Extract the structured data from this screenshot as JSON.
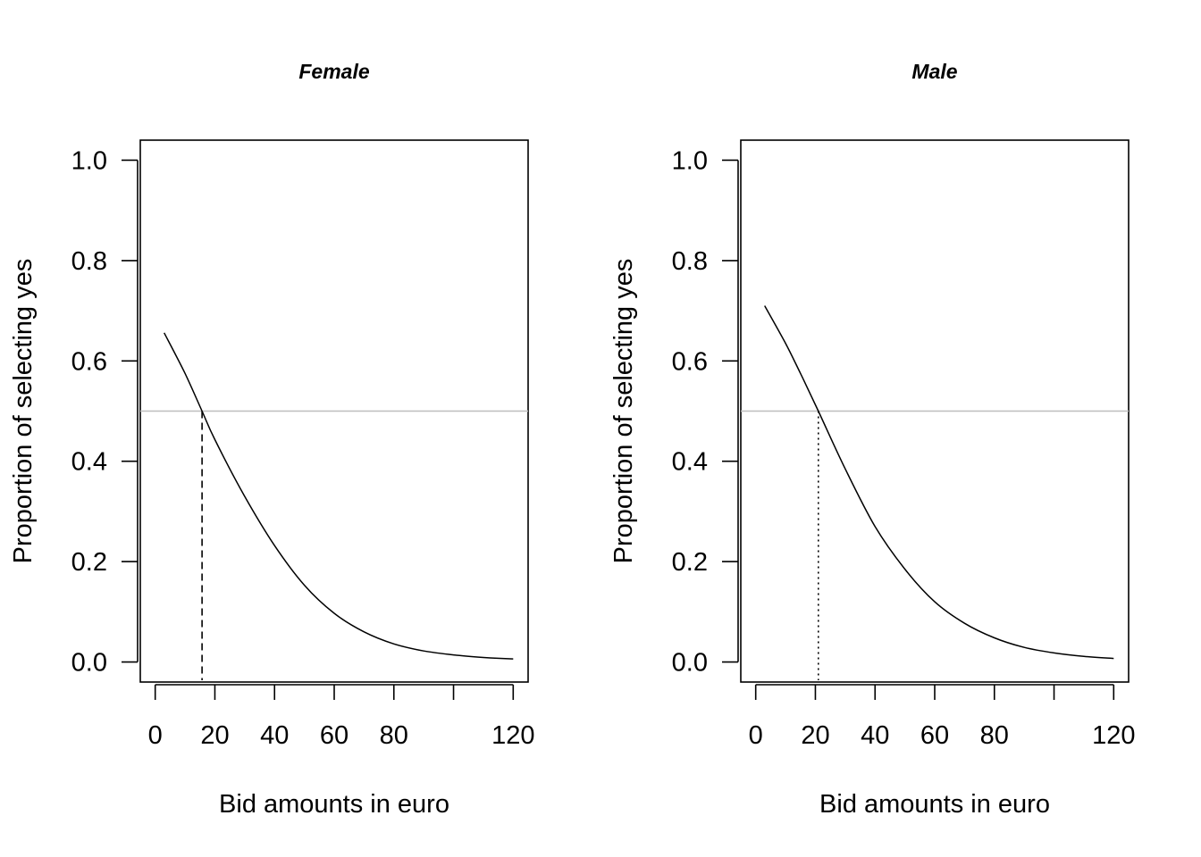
{
  "chart_data": [
    {
      "type": "line",
      "title": "Female",
      "xlabel": "Bid amounts in euro",
      "ylabel": "Proportion  of selecting yes",
      "xlim": [
        -5,
        125
      ],
      "ylim": [
        -0.04,
        1.04
      ],
      "x_ticks": [
        0,
        20,
        40,
        60,
        80,
        100,
        120
      ],
      "x_tick_labels": [
        "0",
        "20",
        "40",
        "60",
        "80",
        "",
        "120"
      ],
      "y_ticks": [
        0.0,
        0.2,
        0.4,
        0.6,
        0.8,
        1.0
      ],
      "y_tick_labels": [
        "0.0",
        "0.2",
        "0.4",
        "0.6",
        "0.8",
        "1.0"
      ],
      "reference_line": {
        "y": 0.5,
        "color": "#bebebe"
      },
      "median_bid": {
        "x": 15.7,
        "line_style": "dashed"
      },
      "series": [
        {
          "x": [
            3,
            10,
            15.7,
            20,
            30,
            40,
            50,
            60,
            70,
            80,
            90,
            100,
            110,
            120
          ],
          "values": [
            0.656,
            0.575,
            0.5,
            0.443,
            0.33,
            0.232,
            0.153,
            0.097,
            0.06,
            0.036,
            0.022,
            0.014,
            0.009,
            0.006
          ]
        }
      ]
    },
    {
      "type": "line",
      "title": "Male",
      "xlabel": "Bid amounts in euro",
      "ylabel": "Proportion  of selecting yes",
      "xlim": [
        -5,
        125
      ],
      "ylim": [
        -0.04,
        1.04
      ],
      "x_ticks": [
        0,
        20,
        40,
        60,
        80,
        100,
        120
      ],
      "x_tick_labels": [
        "0",
        "20",
        "40",
        "60",
        "80",
        "",
        "120"
      ],
      "y_ticks": [
        0.0,
        0.2,
        0.4,
        0.6,
        0.8,
        1.0
      ],
      "y_tick_labels": [
        "0.0",
        "0.2",
        "0.4",
        "0.6",
        "0.8",
        "1.0"
      ],
      "reference_line": {
        "y": 0.5,
        "color": "#bebebe"
      },
      "median_bid": {
        "x": 21,
        "line_style": "dotted"
      },
      "series": [
        {
          "x": [
            3,
            10,
            15,
            21,
            30,
            40,
            50,
            60,
            70,
            80,
            90,
            100,
            110,
            120
          ],
          "values": [
            0.71,
            0.635,
            0.575,
            0.5,
            0.385,
            0.27,
            0.185,
            0.12,
            0.077,
            0.048,
            0.029,
            0.018,
            0.011,
            0.007
          ]
        }
      ]
    }
  ]
}
